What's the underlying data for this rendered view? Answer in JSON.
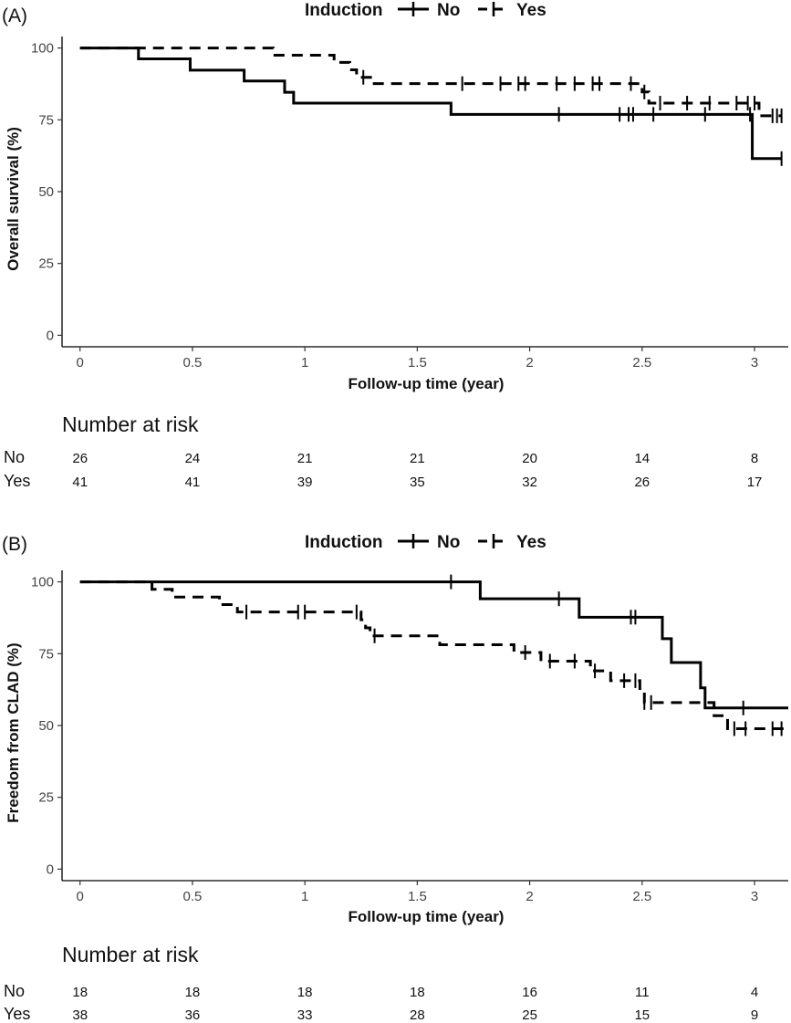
{
  "chart_data": [
    {
      "panel_label": "(A)",
      "type": "line",
      "subtype": "kaplan-meier",
      "legend": {
        "title": "Induction",
        "placement": "top",
        "entries": [
          "No",
          "Yes"
        ]
      },
      "xlabel": "Follow-up time (year)",
      "ylabel": "Overall survival (%)",
      "xlim": [
        -0.08,
        3.15
      ],
      "ylim": [
        -4,
        104
      ],
      "x_ticks": [
        0,
        0.5,
        1,
        1.5,
        2,
        2.5,
        3
      ],
      "x_tick_labels": [
        "0",
        "0.5",
        "1",
        "1.5",
        "2",
        "2.5",
        "3"
      ],
      "y_ticks": [
        0,
        25,
        50,
        75,
        100
      ],
      "y_tick_labels": [
        "0",
        "25",
        "50",
        "75",
        "100"
      ],
      "series": [
        {
          "name": "No",
          "line_style": "solid",
          "steps": [
            [
              0,
              100
            ],
            [
              0.26,
              96.2
            ],
            [
              0.49,
              92.3
            ],
            [
              0.73,
              88.5
            ],
            [
              0.91,
              84.6
            ],
            [
              0.95,
              80.8
            ],
            [
              1.65,
              76.9
            ],
            [
              2.99,
              61.5
            ],
            [
              3.12,
              61.5
            ]
          ],
          "censored": [
            2.13,
            2.4,
            2.44,
            2.46,
            2.55,
            2.78,
            2.98,
            3.12
          ]
        },
        {
          "name": "Yes",
          "line_style": "dashed",
          "steps": [
            [
              0,
              100
            ],
            [
              0.86,
              97.5
            ],
            [
              1.13,
              95
            ],
            [
              1.2,
              92.4
            ],
            [
              1.23,
              89.8
            ],
            [
              1.3,
              87.6
            ],
            [
              2.5,
              84.7
            ],
            [
              2.53,
              80.8
            ],
            [
              3.02,
              76.4
            ],
            [
              3.12,
              76.4
            ]
          ],
          "censored": [
            1.26,
            1.7,
            1.87,
            1.95,
            1.98,
            2.12,
            2.2,
            2.28,
            2.31,
            2.45,
            2.51,
            2.58,
            2.7,
            2.8,
            2.92,
            2.97,
            3.0,
            3.08,
            3.1,
            3.12
          ]
        }
      ],
      "risk_table": {
        "title": "Number at risk",
        "times": [
          0,
          0.5,
          1,
          1.5,
          2,
          2.5,
          3
        ],
        "rows": [
          {
            "label": "No",
            "values": [
              "26",
              "24",
              "21",
              "21",
              "20",
              "14",
              "8"
            ]
          },
          {
            "label": "Yes",
            "values": [
              "41",
              "41",
              "39",
              "35",
              "32",
              "26",
              "17"
            ]
          }
        ]
      }
    },
    {
      "panel_label": "(B)",
      "type": "line",
      "subtype": "kaplan-meier",
      "legend": {
        "title": "Induction",
        "placement": "top",
        "entries": [
          "No",
          "Yes"
        ]
      },
      "xlabel": "Follow-up time (year)",
      "ylabel": "Freedom from CLAD (%)",
      "xlim": [
        -0.08,
        3.15
      ],
      "ylim": [
        -4,
        104
      ],
      "x_ticks": [
        0,
        0.5,
        1,
        1.5,
        2,
        2.5,
        3
      ],
      "x_tick_labels": [
        "0",
        "0.5",
        "1",
        "1.5",
        "2",
        "2.5",
        "3"
      ],
      "y_ticks": [
        0,
        25,
        50,
        75,
        100
      ],
      "y_tick_labels": [
        "0",
        "25",
        "50",
        "75",
        "100"
      ],
      "series": [
        {
          "name": "No",
          "line_style": "solid",
          "steps": [
            [
              0,
              100
            ],
            [
              1.78,
              94.1
            ],
            [
              2.22,
              87.7
            ],
            [
              2.59,
              80.2
            ],
            [
              2.63,
              71.9
            ],
            [
              2.76,
              63.1
            ],
            [
              2.78,
              56.1
            ],
            [
              3.15,
              56.1
            ]
          ],
          "censored": [
            1.65,
            2.13,
            2.45,
            2.47,
            2.95
          ]
        },
        {
          "name": "Yes",
          "line_style": "dashed",
          "steps": [
            [
              0,
              100
            ],
            [
              0.32,
              97.4
            ],
            [
              0.41,
              94.7
            ],
            [
              0.62,
              92.1
            ],
            [
              0.7,
              89.5
            ],
            [
              1.25,
              86.8
            ],
            [
              1.27,
              84
            ],
            [
              1.29,
              81.2
            ],
            [
              1.6,
              78.1
            ],
            [
              1.93,
              75.4
            ],
            [
              2.05,
              72.4
            ],
            [
              2.27,
              69
            ],
            [
              2.36,
              65.6
            ],
            [
              2.49,
              61.8
            ],
            [
              2.51,
              58
            ],
            [
              2.82,
              53.4
            ],
            [
              2.88,
              48.9
            ],
            [
              3.15,
              48.9
            ]
          ],
          "censored": [
            0.74,
            0.97,
            1.0,
            1.23,
            1.31,
            1.98,
            2.09,
            2.2,
            2.29,
            2.42,
            2.47,
            2.51,
            2.54,
            2.91,
            2.96,
            3.08,
            3.12
          ]
        }
      ],
      "risk_table": {
        "title": "Number at risk",
        "times": [
          0,
          0.5,
          1,
          1.5,
          2,
          2.5,
          3
        ],
        "rows": [
          {
            "label": "No",
            "values": [
              "18",
              "18",
              "18",
              "18",
              "16",
              "11",
              "4"
            ]
          },
          {
            "label": "Yes",
            "values": [
              "38",
              "36",
              "33",
              "28",
              "25",
              "15",
              "9"
            ]
          }
        ]
      }
    }
  ]
}
